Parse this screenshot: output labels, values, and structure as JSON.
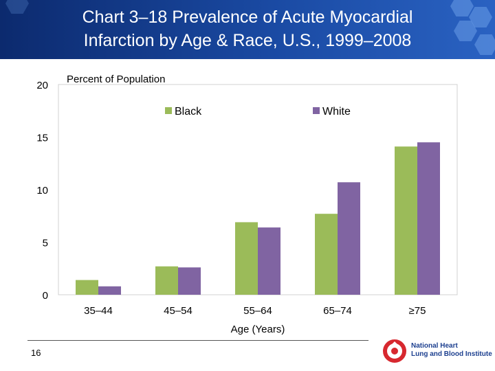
{
  "header": {
    "title_line1": "Chart 3–18 Prevalence of Acute Myocardial",
    "title_line2": "Infarction by Age & Race, U.S., 1999–2008"
  },
  "chart_data": {
    "type": "bar",
    "ylabel": "Percent of Population",
    "xlabel": "Age (Years)",
    "ylim": [
      0,
      20
    ],
    "yticks": [
      "0",
      "5",
      "10",
      "15",
      "20"
    ],
    "categories": [
      "35–44",
      "45–54",
      "55–64",
      "65–74",
      "≥75"
    ],
    "series": [
      {
        "name": "Black",
        "color": "#9bbb59",
        "values": [
          1.4,
          2.7,
          6.9,
          7.7,
          14.1
        ]
      },
      {
        "name": "White",
        "color": "#8064a2",
        "values": [
          0.8,
          2.6,
          6.4,
          10.7,
          14.5
        ]
      }
    ],
    "legend_position": "top",
    "grid": false
  },
  "footer": {
    "page_number": "16",
    "logo_line1": "National Heart",
    "logo_line2": "Lung and Blood Institute"
  }
}
